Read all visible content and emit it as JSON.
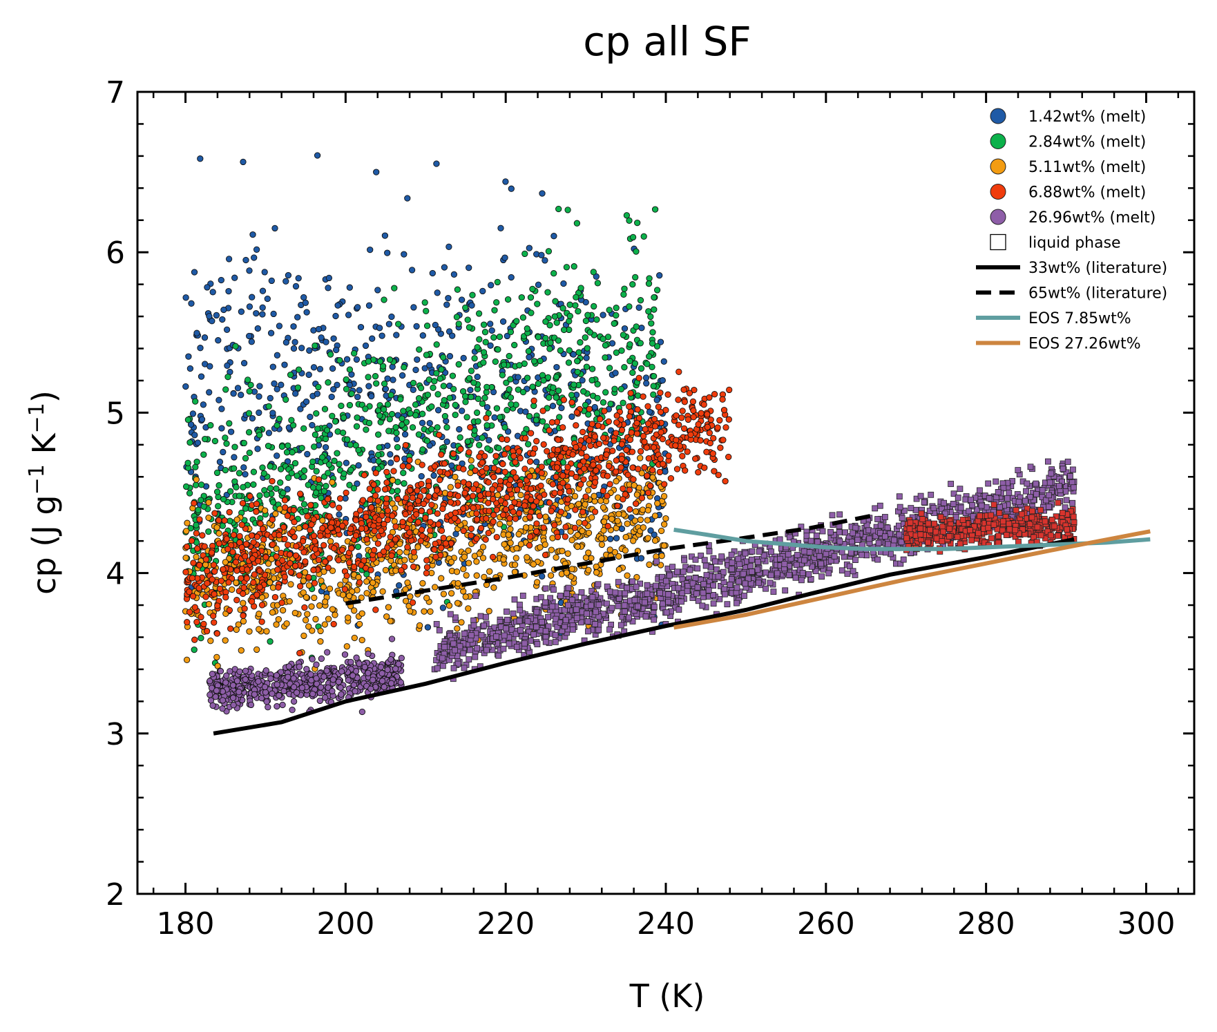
{
  "chart_data": {
    "type": "scatter",
    "title": "cp all SF",
    "xlabel": "T (K)",
    "ylabel_main": "cp (J g",
    "ylabel_sup1": "−1",
    "ylabel_mid": " K",
    "ylabel_sup2": "−1",
    "ylabel_end": ")",
    "xlim": [
      174,
      306
    ],
    "ylim": [
      2,
      7
    ],
    "x_ticks": [
      180,
      200,
      220,
      240,
      260,
      280,
      300
    ],
    "x_tick_labels": [
      "180",
      "200",
      "220",
      "240",
      "260",
      "280",
      "300"
    ],
    "y_ticks": [
      2,
      3,
      4,
      5,
      6,
      7
    ],
    "y_tick_labels": [
      "2",
      "3",
      "4",
      "5",
      "6",
      "7"
    ],
    "grid": false,
    "legend_position": "top-right",
    "series": [
      {
        "name": "1.42wt% (melt)",
        "kind": "points",
        "marker": "circle",
        "color": "#1f5aa6",
        "x_range": [
          180,
          240
        ],
        "y_center": [
          5.2,
          4.9
        ],
        "y_spread": 0.55,
        "count": 700
      },
      {
        "name": "2.84wt% (melt)",
        "kind": "points",
        "marker": "circle",
        "color": "#0cb14b",
        "x_range": [
          180,
          239
        ],
        "y_center": [
          4.3,
          5.5
        ],
        "y_spread": 0.35,
        "count": 900
      },
      {
        "name": "5.11wt% (melt)",
        "kind": "points",
        "marker": "circle",
        "color": "#f39c12",
        "x_range": [
          180,
          240
        ],
        "y_center": [
          3.9,
          4.35
        ],
        "y_spread": 0.22,
        "count": 900
      },
      {
        "name": "6.88wt% (melt)",
        "kind": "points",
        "marker": "circle",
        "color": "#f03c0c",
        "x_range": [
          180,
          248
        ],
        "y_center": [
          3.95,
          4.95
        ],
        "y_spread": 0.17,
        "count": 1100
      },
      {
        "name": "26.96wt% (melt)",
        "kind": "points",
        "marker": "circle",
        "color": "#8e5ea8",
        "x_range": [
          183,
          207
        ],
        "y_center": [
          3.27,
          3.37
        ],
        "y_spread": 0.06,
        "count": 600
      },
      {
        "name": "liquid phase",
        "kind": "points",
        "marker": "square",
        "color": "#ffffff",
        "edge": "#000000"
      },
      {
        "name": "33wt% (literature)",
        "kind": "line",
        "dash": "solid",
        "color": "#000000",
        "x": [
          183.5,
          192,
          200,
          210,
          220,
          230,
          240,
          250,
          258,
          268,
          280,
          291
        ],
        "y": [
          3.0,
          3.07,
          3.2,
          3.31,
          3.44,
          3.56,
          3.67,
          3.77,
          3.87,
          3.99,
          4.1,
          4.21
        ]
      },
      {
        "name": "65wt% (literature)",
        "kind": "line",
        "dash": "dashed",
        "color": "#000000",
        "x": [
          200,
          210,
          220,
          230,
          240,
          250,
          258,
          266
        ],
        "y": [
          3.81,
          3.89,
          3.97,
          4.06,
          4.15,
          4.22,
          4.28,
          4.36
        ]
      },
      {
        "name": "EOS 7.85wt%",
        "kind": "line",
        "dash": "solid",
        "color": "#5f9ea0",
        "x": [
          241,
          245,
          250,
          255,
          260,
          265,
          270,
          275,
          280,
          285,
          290,
          295,
          300.5
        ],
        "y": [
          4.27,
          4.24,
          4.2,
          4.18,
          4.16,
          4.15,
          4.15,
          4.15,
          4.16,
          4.17,
          4.18,
          4.19,
          4.21
        ]
      },
      {
        "name": "EOS 27.26wt%",
        "kind": "line",
        "dash": "solid",
        "color": "#cd853f",
        "x": [
          241,
          250,
          260,
          270,
          280,
          290,
          300.5
        ],
        "y": [
          3.66,
          3.74,
          3.85,
          3.96,
          4.06,
          4.16,
          4.26
        ]
      }
    ],
    "liquid_points": [
      {
        "color": "#8e5ea8",
        "segments": [
          [
            211,
            291,
            3.5,
            4.55
          ]
        ],
        "y_spread": 0.08,
        "count": 1500
      },
      {
        "color": "#d8342e",
        "segments": [
          [
            270,
            291,
            4.25,
            4.3
          ]
        ],
        "y_spread": 0.05,
        "count": 400
      }
    ]
  }
}
